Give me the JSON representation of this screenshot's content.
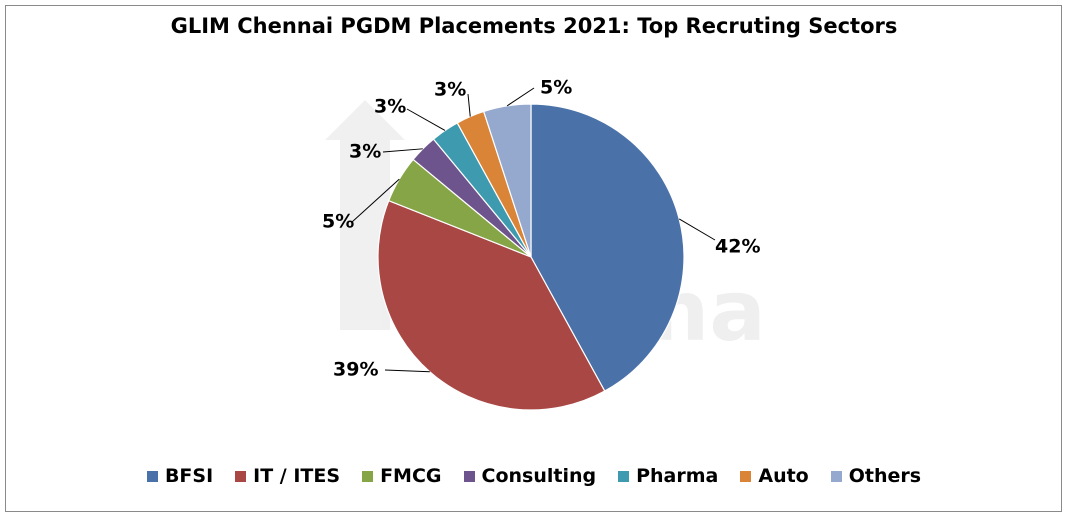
{
  "chart_data": {
    "type": "pie",
    "title": "GLIM Chennai PGDM Placements 2021: Top Recruting Sectors",
    "categories": [
      "BFSI",
      "IT / ITES",
      "FMCG",
      "Consulting",
      "Pharma",
      "Auto",
      "Others"
    ],
    "values": [
      42,
      39,
      5,
      3,
      3,
      3,
      5
    ],
    "labels": [
      "42%",
      "39%",
      "5%",
      "3%",
      "3%",
      "3%",
      "5%"
    ],
    "colors": [
      "#4A72A8",
      "#A84744",
      "#86A546",
      "#6D548C",
      "#3E9AAE",
      "#DA8438",
      "#95A9CF"
    ],
    "legend_position": "bottom"
  },
  "watermark": "shiksha"
}
